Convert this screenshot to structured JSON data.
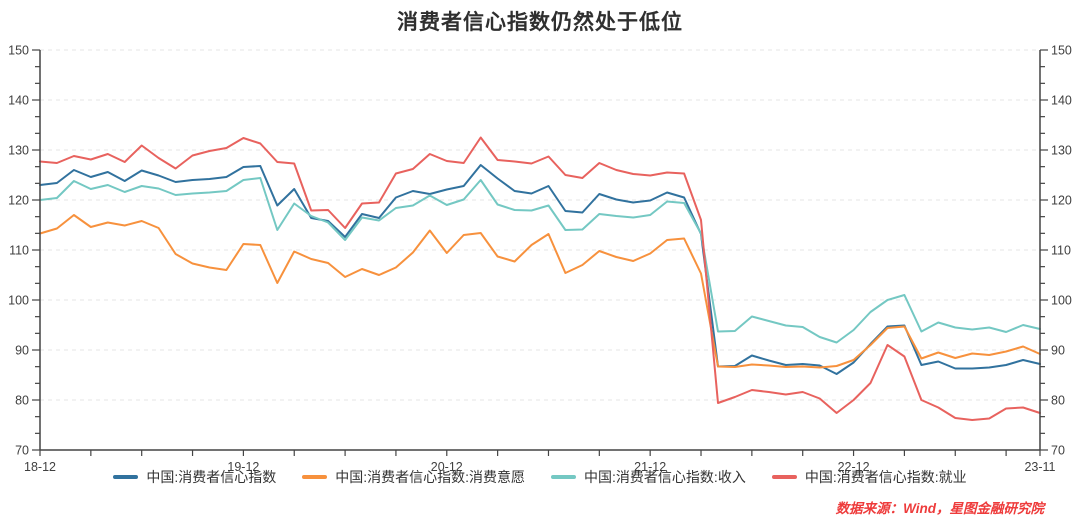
{
  "source_note": "数据来源：Wind，星图金融研究院",
  "chart_data": {
    "type": "line",
    "title": "消费者信心指数仍然处于低位",
    "grid": "horizontal-dashed",
    "legend_position": "bottom",
    "x": [
      "18-12",
      "19-01",
      "19-02",
      "19-03",
      "19-04",
      "19-05",
      "19-06",
      "19-07",
      "19-08",
      "19-09",
      "19-10",
      "19-11",
      "19-12",
      "20-01",
      "20-02",
      "20-03",
      "20-04",
      "20-05",
      "20-06",
      "20-07",
      "20-08",
      "20-09",
      "20-10",
      "20-11",
      "20-12",
      "21-01",
      "21-02",
      "21-03",
      "21-04",
      "21-05",
      "21-06",
      "21-07",
      "21-08",
      "21-09",
      "21-10",
      "21-11",
      "21-12",
      "22-01",
      "22-02",
      "22-03",
      "22-04",
      "22-05",
      "22-06",
      "22-07",
      "22-08",
      "22-09",
      "22-10",
      "22-11",
      "22-12",
      "23-01",
      "23-02",
      "23-03",
      "23-04",
      "23-05",
      "23-06",
      "23-07",
      "23-08",
      "23-09",
      "23-10",
      "23-11"
    ],
    "x_axis": {
      "tick_labels": [
        "18-12",
        "19-12",
        "20-12",
        "21-12",
        "22-12",
        "23-11"
      ],
      "labeled_indices": [
        0,
        12,
        24,
        36,
        48,
        59
      ],
      "minor_tick_every_months": 3
    },
    "y_axis": {
      "min": 70,
      "max": 150,
      "major_step": 10,
      "minor_per_major": 3,
      "tick_labels": [
        70,
        80,
        90,
        100,
        110,
        120,
        130,
        140,
        150
      ],
      "mirrored_right": true
    },
    "series": [
      {
        "name": "中国:消费者信心指数",
        "color": "#31729e",
        "values": [
          123.0,
          123.4,
          126.0,
          124.6,
          125.6,
          123.8,
          125.9,
          124.9,
          123.6,
          124.0,
          124.2,
          124.6,
          126.6,
          126.8,
          118.9,
          122.2,
          116.4,
          115.8,
          112.6,
          117.2,
          116.4,
          120.5,
          121.8,
          121.2,
          122.1,
          122.8,
          127.0,
          124.3,
          121.8,
          121.3,
          122.8,
          117.8,
          117.5,
          121.2,
          120.1,
          119.5,
          119.9,
          121.5,
          120.5,
          113.2,
          86.7,
          86.8,
          88.9,
          87.9,
          87.0,
          87.2,
          86.9,
          85.2,
          87.5,
          91.2,
          94.7,
          94.9,
          87.0,
          87.7,
          86.3,
          86.3,
          86.5,
          87.0,
          88.0,
          87.2
        ]
      },
      {
        "name": "中国:消费者信心指数:消费意愿",
        "color": "#f7913d",
        "values": [
          113.3,
          114.3,
          117.0,
          114.6,
          115.5,
          114.9,
          115.8,
          114.4,
          109.2,
          107.3,
          106.5,
          106.0,
          111.2,
          111.0,
          103.4,
          109.7,
          108.2,
          107.4,
          104.6,
          106.2,
          105.0,
          106.5,
          109.5,
          113.9,
          109.4,
          113.0,
          113.4,
          108.7,
          107.7,
          111.0,
          113.2,
          105.4,
          107.0,
          109.8,
          108.6,
          107.8,
          109.3,
          112.0,
          112.3,
          105.3,
          86.7,
          86.6,
          87.1,
          86.9,
          86.6,
          86.7,
          86.5,
          86.8,
          88.0,
          91.0,
          94.4,
          94.7,
          88.3,
          89.5,
          88.4,
          89.3,
          89.0,
          89.7,
          90.7,
          89.2
        ]
      },
      {
        "name": "中国:消费者信心指数:收入",
        "color": "#74c8c3",
        "values": [
          120.0,
          120.4,
          123.8,
          122.2,
          123.0,
          121.6,
          122.8,
          122.3,
          121.0,
          121.3,
          121.5,
          121.8,
          124.0,
          124.4,
          114.0,
          119.3,
          116.8,
          115.5,
          112.0,
          116.5,
          115.9,
          118.4,
          118.9,
          120.9,
          119.0,
          120.1,
          124.0,
          119.1,
          118.0,
          117.9,
          118.9,
          114.0,
          114.1,
          117.2,
          116.8,
          116.5,
          117.0,
          119.7,
          119.4,
          113.3,
          93.7,
          93.8,
          96.7,
          95.8,
          94.9,
          94.6,
          92.6,
          91.5,
          94.0,
          97.6,
          100.0,
          101.0,
          93.7,
          95.5,
          94.5,
          94.1,
          94.5,
          93.6,
          95.0,
          94.2
        ]
      },
      {
        "name": "中国:消费者信心指数:就业",
        "color": "#e8625e",
        "values": [
          127.7,
          127.4,
          128.8,
          128.1,
          129.2,
          127.6,
          130.9,
          128.4,
          126.3,
          128.9,
          129.8,
          130.4,
          132.4,
          131.3,
          127.6,
          127.3,
          117.9,
          118.0,
          114.4,
          119.3,
          119.5,
          125.3,
          126.2,
          129.2,
          127.8,
          127.4,
          132.5,
          128.0,
          127.7,
          127.3,
          128.7,
          125.0,
          124.4,
          127.4,
          126.0,
          125.2,
          124.9,
          125.5,
          125.3,
          116.0,
          79.4,
          80.6,
          82.0,
          81.6,
          81.1,
          81.6,
          80.3,
          77.4,
          80.0,
          83.4,
          91.0,
          88.7,
          80.0,
          78.5,
          76.4,
          76.0,
          76.3,
          78.3,
          78.5,
          77.4
        ]
      }
    ]
  }
}
